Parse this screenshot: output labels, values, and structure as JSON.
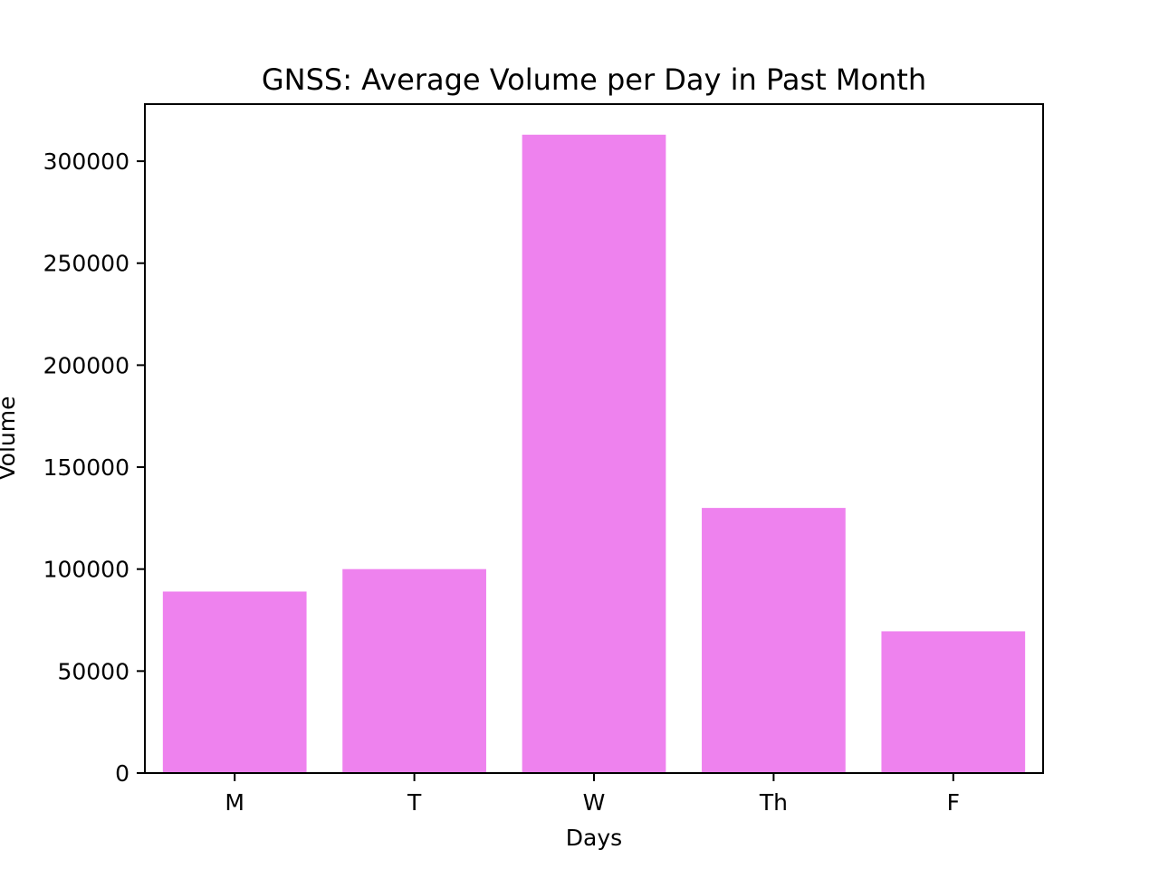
{
  "chart_data": {
    "type": "bar",
    "title": "GNSS: Average Volume per Day in Past Month",
    "xlabel": "Days",
    "ylabel": "Volume",
    "categories": [
      "M",
      "T",
      "W",
      "Th",
      "F"
    ],
    "values": [
      89000,
      100000,
      313000,
      130000,
      69500
    ],
    "ylim": [
      0,
      328000
    ],
    "yticks": [
      0,
      50000,
      100000,
      150000,
      200000,
      250000,
      300000
    ],
    "ytick_labels": [
      "0",
      "50000",
      "100000",
      "150000",
      "200000",
      "250000",
      "300000"
    ],
    "bar_color": "#ee82ee",
    "grid": false,
    "legend": "none"
  }
}
